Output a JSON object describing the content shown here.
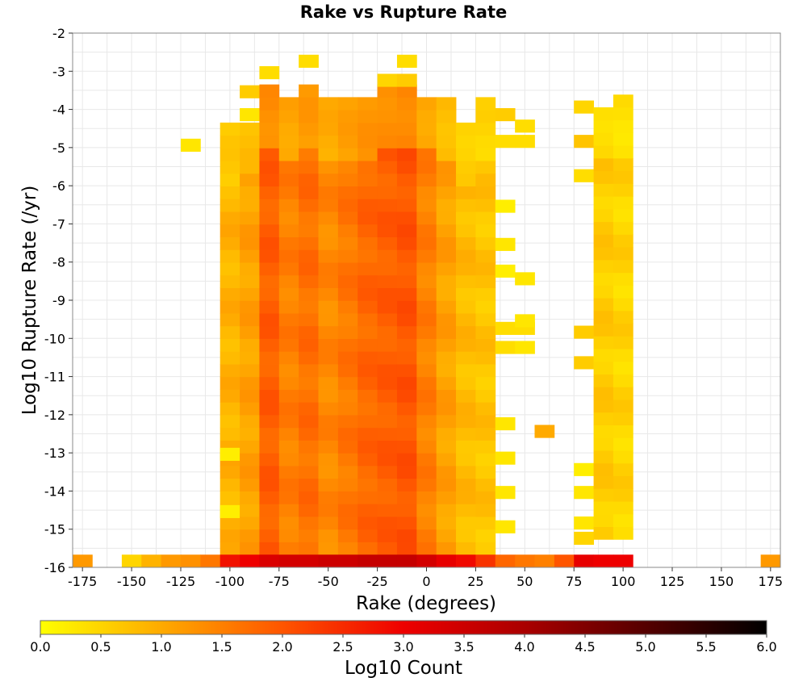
{
  "chart_data": {
    "type": "heatmap",
    "title": "Rake vs Rupture Rate",
    "xlabel": "Rake (degrees)",
    "ylabel": "Log10 Rupture Rate (/yr)",
    "xlim": [
      -180,
      180
    ],
    "ylim": [
      -16,
      -2
    ],
    "x_ticks": [
      -175,
      -150,
      -125,
      -100,
      -75,
      -50,
      -25,
      0,
      25,
      50,
      75,
      100,
      125,
      150,
      175
    ],
    "y_ticks": [
      -2,
      -3,
      -4,
      -5,
      -6,
      -7,
      -8,
      -9,
      -10,
      -11,
      -12,
      -13,
      -14,
      -15,
      -16
    ],
    "grid": true,
    "bin_width_x": 10,
    "bin_height_y": 0.333,
    "colorbar": {
      "label": "Log10 Count",
      "range": [
        0,
        6
      ],
      "ticks": [
        "0.0",
        "0.5",
        "1.0",
        "1.5",
        "2.0",
        "2.5",
        "3.0",
        "3.5",
        "4.0",
        "4.5",
        "5.0",
        "5.5",
        "6.0"
      ],
      "colors": [
        "#ffff00",
        "#ffaa00",
        "#ff5500",
        "#ee0000",
        "#aa0000",
        "#550000",
        "#000000"
      ],
      "placement": "bottom"
    },
    "columns": [
      {
        "x": -175,
        "cells": [
          [
            -16,
            1.2
          ]
        ]
      },
      {
        "x": -150,
        "cells": [
          [
            -16,
            0.5
          ]
        ]
      },
      {
        "x": -140,
        "cells": [
          [
            -16,
            0.9
          ]
        ]
      },
      {
        "x": -130,
        "cells": [
          [
            -16,
            1.2
          ]
        ]
      },
      {
        "x": -120,
        "cells": [
          [
            -16,
            1.3
          ],
          [
            -5.1,
            0.3
          ]
        ]
      },
      {
        "x": -110,
        "cells": [
          [
            -16,
            1.6
          ]
        ]
      },
      {
        "x": -100,
        "bottom": -16,
        "top": -4.5,
        "value": 0.9,
        "cells": [
          [
            -16,
            2.8
          ],
          [
            -14.7,
            0.2
          ],
          [
            -13.2,
            0.2
          ]
        ]
      },
      {
        "x": -90,
        "bottom": -16,
        "top": -4.4,
        "value": 1.1,
        "cells": [
          [
            -16,
            3.0
          ],
          [
            -3.7,
            0.6
          ],
          [
            -4.3,
            0.3
          ]
        ]
      },
      {
        "x": -80,
        "bottom": -16,
        "top": -3.5,
        "value": 1.9,
        "cells": [
          [
            -16,
            3.3
          ],
          [
            -3.2,
            0.4
          ]
        ]
      },
      {
        "x": -70,
        "bottom": -16,
        "top": -3.8,
        "value": 1.5,
        "cells": [
          [
            -16,
            3.4
          ]
        ]
      },
      {
        "x": -60,
        "bottom": -16,
        "top": -3.6,
        "value": 1.7,
        "cells": [
          [
            -16,
            3.4
          ],
          [
            -2.9,
            0.4
          ]
        ]
      },
      {
        "x": -50,
        "bottom": -16,
        "top": -3.8,
        "value": 1.4,
        "cells": [
          [
            -16,
            3.5
          ]
        ]
      },
      {
        "x": -40,
        "bottom": -16,
        "top": -3.9,
        "value": 1.6,
        "cells": [
          [
            -16,
            3.5
          ]
        ]
      },
      {
        "x": -30,
        "bottom": -16,
        "top": -3.9,
        "value": 1.8,
        "cells": [
          [
            -16,
            3.6
          ]
        ]
      },
      {
        "x": -20,
        "bottom": -16,
        "top": -3.6,
        "value": 1.9,
        "cells": [
          [
            -16,
            3.6
          ],
          [
            -3.4,
            0.5
          ]
        ]
      },
      {
        "x": -10,
        "bottom": -16,
        "top": -3.6,
        "value": 2.0,
        "cells": [
          [
            -16,
            3.6
          ],
          [
            -2.9,
            0.4
          ],
          [
            -3.4,
            0.6
          ]
        ]
      },
      {
        "x": 0,
        "bottom": -16,
        "top": -3.7,
        "value": 1.5,
        "cells": [
          [
            -16,
            3.4
          ]
        ]
      },
      {
        "x": 10,
        "bottom": -16,
        "top": -3.9,
        "value": 1.1,
        "cells": [
          [
            -16,
            3.1
          ]
        ]
      },
      {
        "x": 20,
        "bottom": -16,
        "top": -4.5,
        "value": 0.8,
        "cells": [
          [
            -16,
            2.9
          ]
        ]
      },
      {
        "x": 30,
        "bottom": -16,
        "top": -3.9,
        "value": 0.7,
        "cells": [
          [
            -16,
            2.4
          ]
        ]
      },
      {
        "x": 40,
        "cells": [
          [
            -16,
            1.8
          ],
          [
            -4.3,
            0.6
          ],
          [
            -5.0,
            0.4
          ],
          [
            -15.1,
            0.3
          ],
          [
            -14.2,
            0.3
          ],
          [
            -13.3,
            0.3
          ],
          [
            -12.4,
            0.3
          ],
          [
            -10.4,
            0.4
          ],
          [
            -9.9,
            0.4
          ],
          [
            -8.4,
            0.2
          ],
          [
            -7.7,
            0.3
          ],
          [
            -6.7,
            0.2
          ]
        ]
      },
      {
        "x": 50,
        "cells": [
          [
            -16,
            1.6
          ],
          [
            -4.6,
            0.4
          ],
          [
            -5.0,
            0.4
          ],
          [
            -9.9,
            0.4
          ],
          [
            -10.4,
            0.3
          ],
          [
            -8.6,
            0.3
          ],
          [
            -9.7,
            0.3
          ]
        ]
      },
      {
        "x": 60,
        "cells": [
          [
            -16,
            1.5
          ],
          [
            -12.6,
            1.0
          ]
        ]
      },
      {
        "x": 70,
        "cells": [
          [
            -16,
            2.0
          ]
        ]
      },
      {
        "x": 80,
        "cells": [
          [
            -16,
            3.1
          ],
          [
            -4.1,
            0.5
          ],
          [
            -5.0,
            0.7
          ],
          [
            -5.9,
            0.4
          ],
          [
            -10.0,
            0.6
          ],
          [
            -10.8,
            0.6
          ],
          [
            -13.6,
            0.2
          ],
          [
            -14.2,
            0.3
          ],
          [
            -15.0,
            0.3
          ],
          [
            -15.4,
            0.5
          ]
        ]
      },
      {
        "x": 90,
        "bottom": -15.6,
        "top": -4.0,
        "value": 0.6,
        "cells": [
          [
            -16,
            3.0
          ]
        ]
      },
      {
        "x": 100,
        "bottom": -15.6,
        "top": -3.8,
        "value": 0.5,
        "cells": [
          [
            -16,
            3.0
          ]
        ]
      },
      {
        "x": 175,
        "cells": [
          [
            -16,
            1.2
          ]
        ]
      }
    ]
  }
}
